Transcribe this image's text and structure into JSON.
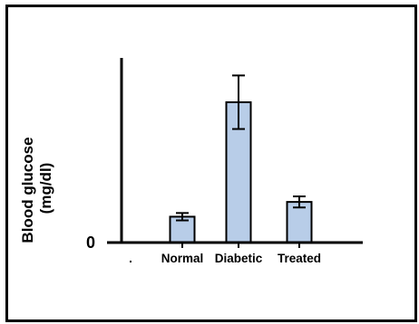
{
  "chart_data": {
    "type": "bar",
    "title": "",
    "xlabel": "",
    "ylabel_line1": "Blood glucose",
    "ylabel_line2": "(mg/dl)",
    "y_tick_label": "0",
    "categories": [
      "Normal",
      "Diabetic",
      "Treated"
    ],
    "values": [
      28,
      152,
      44
    ],
    "error": [
      4,
      29,
      6
    ],
    "ylim": [
      0,
      200
    ],
    "grid": false,
    "legend": "none",
    "bar_color": "#b8cde8",
    "bar_edge_color": "#000000"
  }
}
